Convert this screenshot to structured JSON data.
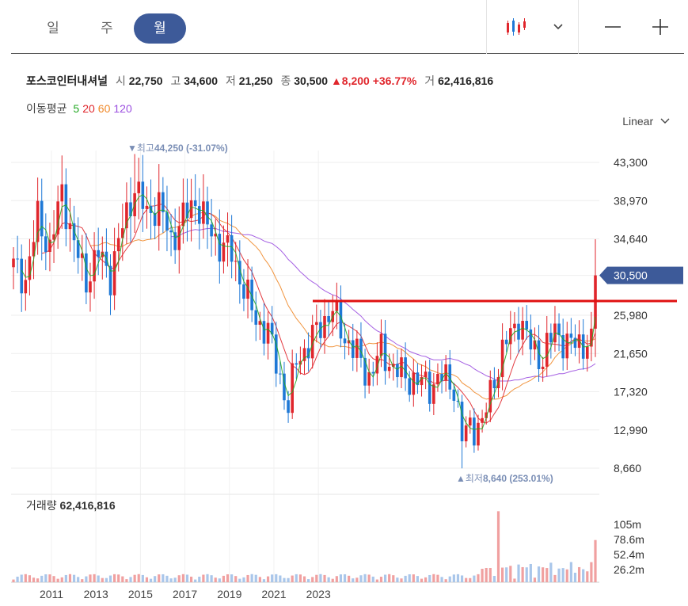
{
  "tabs": [
    {
      "label": "일"
    },
    {
      "label": "주"
    },
    {
      "label": "월"
    }
  ],
  "active_tab": 2,
  "controls": {
    "chart_type_icon": "candlestick-icon",
    "dropdown_icon": "chevron-down-icon",
    "zoom_out_icon": "minus-icon",
    "zoom_in_icon": "plus-icon"
  },
  "stock": {
    "name": "포스코인터내셔널",
    "open_label": "시",
    "open": "22,750",
    "high_label": "고",
    "high": "34,600",
    "low_label": "저",
    "low": "21,250",
    "close_label": "종",
    "close": "30,500",
    "change": "▲8,200",
    "change_pct": "+36.77%",
    "volume_label": "거",
    "volume": "62,416,816"
  },
  "moving_average": {
    "label": "이동평균",
    "periods": [
      {
        "value": "5",
        "color": "#22a822"
      },
      {
        "value": "20",
        "color": "#e0262c"
      },
      {
        "value": "60",
        "color": "#f0892a"
      },
      {
        "value": "120",
        "color": "#9b4fe0"
      }
    ]
  },
  "scale_label": "Linear",
  "colors": {
    "up": "#e0262c",
    "down": "#1e78d6",
    "badge": "#3d5a99"
  },
  "chart_data": {
    "type": "candlestick",
    "price_ticks": [
      "43,300",
      "38,970",
      "34,640",
      "30,500",
      "25,980",
      "21,650",
      "17,320",
      "12,990",
      "8,660"
    ],
    "y_range": [
      8660,
      43300
    ],
    "current_price": "30,500",
    "high_annotation": {
      "text": "▼최고",
      "value": "44,250 (-31.07%)"
    },
    "low_annotation": {
      "text": "▲최저",
      "value": "8,640 (253.01%)"
    },
    "volume_label": "거래량",
    "volume_value": "62,416,816",
    "volume_ticks": [
      "105m",
      "78.6m",
      "52.4m",
      "26.2m"
    ],
    "x_ticks": [
      "2011",
      "2013",
      "2015",
      "2017",
      "2019",
      "2021",
      "2023"
    ],
    "resistance_line_price": 27600,
    "series": {
      "ma5_color": "#22a822",
      "ma20_color": "#e0262c",
      "ma60_color": "#f0892a",
      "ma120_color": "#9b4fe0"
    }
  }
}
